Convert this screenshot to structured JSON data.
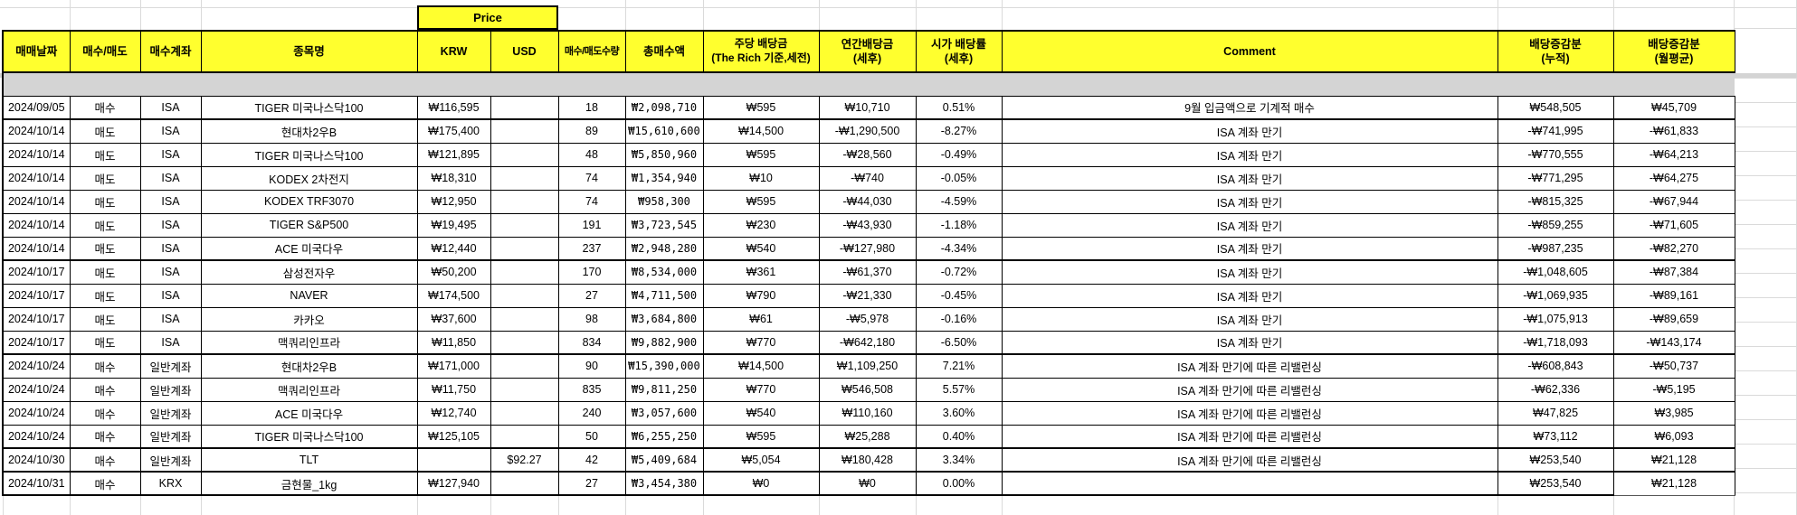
{
  "sheet": {
    "price_group_label": "Price",
    "columns": [
      {
        "key": "date",
        "label": "매매날짜"
      },
      {
        "key": "side",
        "label": "매수/매도"
      },
      {
        "key": "account",
        "label": "매수계좌"
      },
      {
        "key": "name",
        "label": "종목명"
      },
      {
        "key": "krw",
        "label": "KRW"
      },
      {
        "key": "usd",
        "label": "USD"
      },
      {
        "key": "qty",
        "label": "매수/매도수량"
      },
      {
        "key": "total",
        "label": "총매수액"
      },
      {
        "key": "dps",
        "label": "주당 배당금\n(The Rich 기준,세전)"
      },
      {
        "key": "annual",
        "label": "연간배당금\n(세후)"
      },
      {
        "key": "yield",
        "label": "시가 배당률\n(세후)"
      },
      {
        "key": "comment",
        "label": "Comment"
      },
      {
        "key": "cum",
        "label": "배당증감분\n(누적)"
      },
      {
        "key": "monthly",
        "label": "배당증감분\n(월평균)"
      }
    ],
    "rows": [
      {
        "date": "2024/09/05",
        "side": "매수",
        "account": "ISA",
        "name": "TIGER 미국나스닥100",
        "krw": "₩116,595",
        "usd": "",
        "qty": "18",
        "total": "₩2,098,710",
        "dps": "₩595",
        "annual": "₩10,710",
        "yield": "0.51%",
        "comment": "9월 입금액으로 기계적 매수",
        "cum": "₩548,505",
        "monthly": "₩45,709"
      },
      {
        "date": "2024/10/14",
        "side": "매도",
        "account": "ISA",
        "name": "현대차2우B",
        "krw": "₩175,400",
        "usd": "",
        "qty": "89",
        "total": "₩15,610,600",
        "dps": "₩14,500",
        "annual": "-₩1,290,500",
        "yield": "-8.27%",
        "comment": "ISA 계좌 만기",
        "cum": "-₩741,995",
        "monthly": "-₩61,833"
      },
      {
        "date": "2024/10/14",
        "side": "매도",
        "account": "ISA",
        "name": "TIGER 미국나스닥100",
        "krw": "₩121,895",
        "usd": "",
        "qty": "48",
        "total": "₩5,850,960",
        "dps": "₩595",
        "annual": "-₩28,560",
        "yield": "-0.49%",
        "comment": "ISA 계좌 만기",
        "cum": "-₩770,555",
        "monthly": "-₩64,213"
      },
      {
        "date": "2024/10/14",
        "side": "매도",
        "account": "ISA",
        "name": "KODEX 2차전지",
        "krw": "₩18,310",
        "usd": "",
        "qty": "74",
        "total": "₩1,354,940",
        "dps": "₩10",
        "annual": "-₩740",
        "yield": "-0.05%",
        "comment": "ISA 계좌 만기",
        "cum": "-₩771,295",
        "monthly": "-₩64,275"
      },
      {
        "date": "2024/10/14",
        "side": "매도",
        "account": "ISA",
        "name": "KODEX TRF3070",
        "krw": "₩12,950",
        "usd": "",
        "qty": "74",
        "total": "₩958,300",
        "dps": "₩595",
        "annual": "-₩44,030",
        "yield": "-4.59%",
        "comment": "ISA 계좌 만기",
        "cum": "-₩815,325",
        "monthly": "-₩67,944"
      },
      {
        "date": "2024/10/14",
        "side": "매도",
        "account": "ISA",
        "name": "TIGER S&P500",
        "krw": "₩19,495",
        "usd": "",
        "qty": "191",
        "total": "₩3,723,545",
        "dps": "₩230",
        "annual": "-₩43,930",
        "yield": "-1.18%",
        "comment": "ISA 계좌 만기",
        "cum": "-₩859,255",
        "monthly": "-₩71,605"
      },
      {
        "date": "2024/10/14",
        "side": "매도",
        "account": "ISA",
        "name": "ACE 미국다우",
        "krw": "₩12,440",
        "usd": "",
        "qty": "237",
        "total": "₩2,948,280",
        "dps": "₩540",
        "annual": "-₩127,980",
        "yield": "-4.34%",
        "comment": "ISA 계좌 만기",
        "cum": "-₩987,235",
        "monthly": "-₩82,270"
      },
      {
        "date": "2024/10/17",
        "side": "매도",
        "account": "ISA",
        "name": "삼성전자우",
        "krw": "₩50,200",
        "usd": "",
        "qty": "170",
        "total": "₩8,534,000",
        "dps": "₩361",
        "annual": "-₩61,370",
        "yield": "-0.72%",
        "comment": "ISA 계좌 만기",
        "cum": "-₩1,048,605",
        "monthly": "-₩87,384"
      },
      {
        "date": "2024/10/17",
        "side": "매도",
        "account": "ISA",
        "name": "NAVER",
        "krw": "₩174,500",
        "usd": "",
        "qty": "27",
        "total": "₩4,711,500",
        "dps": "₩790",
        "annual": "-₩21,330",
        "yield": "-0.45%",
        "comment": "ISA 계좌 만기",
        "cum": "-₩1,069,935",
        "monthly": "-₩89,161"
      },
      {
        "date": "2024/10/17",
        "side": "매도",
        "account": "ISA",
        "name": "카카오",
        "krw": "₩37,600",
        "usd": "",
        "qty": "98",
        "total": "₩3,684,800",
        "dps": "₩61",
        "annual": "-₩5,978",
        "yield": "-0.16%",
        "comment": "ISA 계좌 만기",
        "cum": "-₩1,075,913",
        "monthly": "-₩89,659"
      },
      {
        "date": "2024/10/17",
        "side": "매도",
        "account": "ISA",
        "name": "맥쿼리인프라",
        "krw": "₩11,850",
        "usd": "",
        "qty": "834",
        "total": "₩9,882,900",
        "dps": "₩770",
        "annual": "-₩642,180",
        "yield": "-6.50%",
        "comment": "ISA 계좌 만기",
        "cum": "-₩1,718,093",
        "monthly": "-₩143,174"
      },
      {
        "date": "2024/10/24",
        "side": "매수",
        "account": "일반계좌",
        "name": "현대차2우B",
        "krw": "₩171,000",
        "usd": "",
        "qty": "90",
        "total": "₩15,390,000",
        "dps": "₩14,500",
        "annual": "₩1,109,250",
        "yield": "7.21%",
        "comment": "ISA 계좌 만기에 따른 리밸런싱",
        "cum": "-₩608,843",
        "monthly": "-₩50,737"
      },
      {
        "date": "2024/10/24",
        "side": "매수",
        "account": "일반계좌",
        "name": "맥쿼리인프라",
        "krw": "₩11,750",
        "usd": "",
        "qty": "835",
        "total": "₩9,811,250",
        "dps": "₩770",
        "annual": "₩546,508",
        "yield": "5.57%",
        "comment": "ISA 계좌 만기에 따른 리밸런싱",
        "cum": "-₩62,336",
        "monthly": "-₩5,195"
      },
      {
        "date": "2024/10/24",
        "side": "매수",
        "account": "일반계좌",
        "name": "ACE 미국다우",
        "krw": "₩12,740",
        "usd": "",
        "qty": "240",
        "total": "₩3,057,600",
        "dps": "₩540",
        "annual": "₩110,160",
        "yield": "3.60%",
        "comment": "ISA 계좌 만기에 따른 리밸런싱",
        "cum": "₩47,825",
        "monthly": "₩3,985"
      },
      {
        "date": "2024/10/24",
        "side": "매수",
        "account": "일반계좌",
        "name": "TIGER 미국나스닥100",
        "krw": "₩125,105",
        "usd": "",
        "qty": "50",
        "total": "₩6,255,250",
        "dps": "₩595",
        "annual": "₩25,288",
        "yield": "0.40%",
        "comment": "ISA 계좌 만기에 따른 리밸런싱",
        "cum": "₩73,112",
        "monthly": "₩6,093"
      },
      {
        "date": "2024/10/30",
        "side": "매수",
        "account": "일반계좌",
        "name": "TLT",
        "krw": "",
        "usd": "$92.27",
        "qty": "42",
        "total": "₩5,409,684",
        "dps": "₩5,054",
        "annual": "₩180,428",
        "yield": "3.34%",
        "comment": "ISA 계좌 만기에 따른 리밸런싱",
        "cum": "₩253,540",
        "monthly": "₩21,128"
      },
      {
        "date": "2024/10/31",
        "side": "매수",
        "account": "KRX",
        "name": "금현물_1kg",
        "krw": "₩127,940",
        "usd": "",
        "qty": "27",
        "total": "₩3,454,380",
        "dps": "₩0",
        "annual": "₩0",
        "yield": "0.00%",
        "comment": "",
        "cum": "₩253,540",
        "monthly": "₩21,128"
      }
    ],
    "colors": {
      "header_bg": "#ffff2e",
      "buy_bg": "#f0caca",
      "sell_bg": "#cbdcee",
      "gridline": "#dadada",
      "shadow_band": "#d4d4d4",
      "border": "#000000"
    }
  }
}
